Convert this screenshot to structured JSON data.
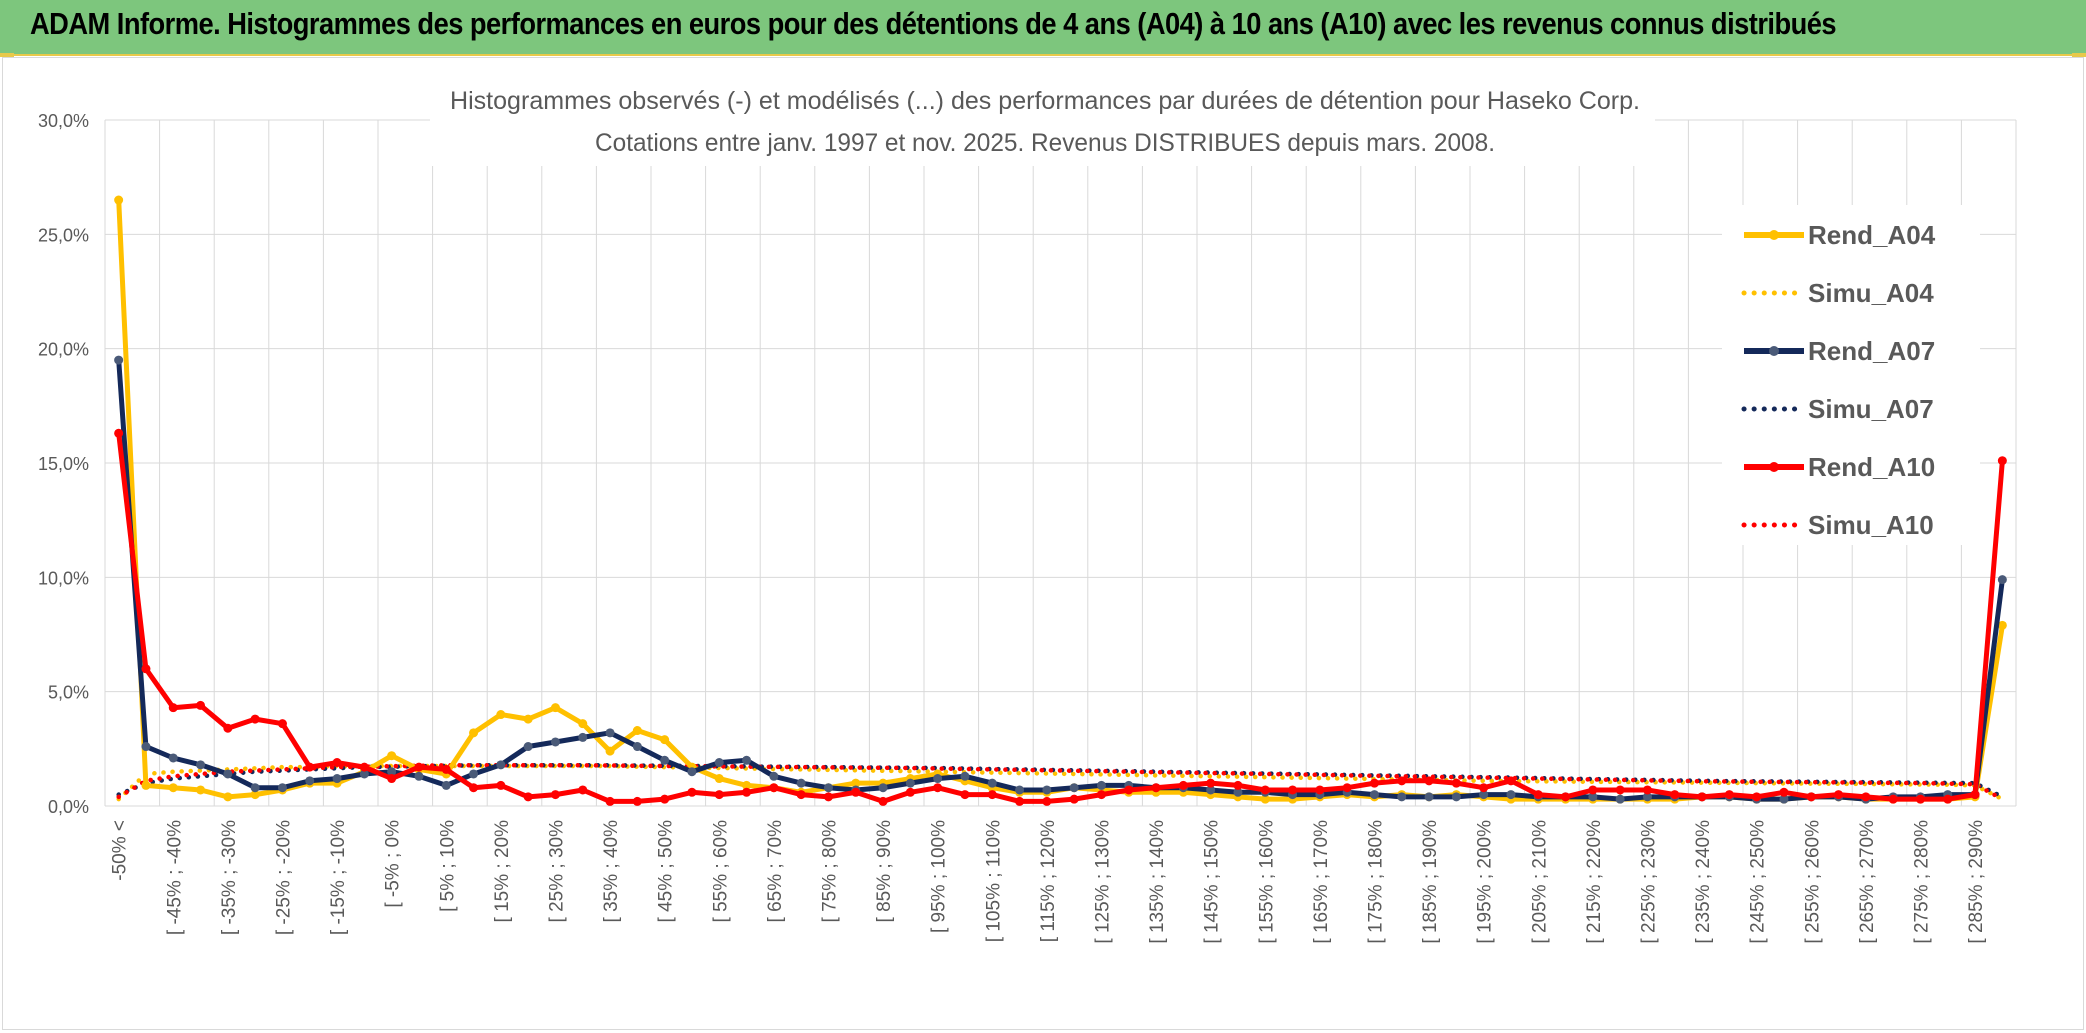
{
  "banner": {
    "title": "ADAM Informe. Histogrammes des performances en euros pour des détentions de 4 ans (A04) à 10 ans (A10) avec les revenus connus distribués"
  },
  "colors": {
    "banner_bg": "#7dc67d",
    "A04": "#ffc000",
    "A07": "#14295a",
    "A10": "#ff0000",
    "grid": "#d9d9d9",
    "text": "#595959"
  },
  "chart_data": {
    "type": "line",
    "title_line1": "Histogrammes observés (-) et modélisés (...) des performances par durées de détention pour Haseko Corp.",
    "title_line2": "Cotations entre janv. 1997 et nov. 2025. Revenus DISTRIBUES depuis mars. 2008.",
    "ylim": [
      0,
      30
    ],
    "yticks": [
      0,
      5,
      10,
      15,
      20,
      25,
      30
    ],
    "ytick_labels": [
      "0,0%",
      "5,0%",
      "10,0%",
      "15,0%",
      "20,0%",
      "25,0%",
      "30,0%"
    ],
    "legend_position": "right",
    "x_tick_labels": [
      "-50% <",
      "[ -45% ; -40%",
      "[ -35% ; -30%",
      "[ -25% ; -20%",
      "[ -15% ; -10%",
      "[ -5% ; 0%",
      "[ 5% ; 10%",
      "[ 15% ; 20%",
      "[ 25% ; 30%",
      "[ 35% ; 40%",
      "[ 45% ; 50%",
      "[ 55% ; 60%",
      "[ 65% ; 70%",
      "[ 75% ; 80%",
      "[ 85% ; 90%",
      "[ 95% ; 100%",
      "[ 105% ; 110%",
      "[ 115% ; 120%",
      "[ 125% ; 130%",
      "[ 135% ; 140%",
      "[ 145% ; 150%",
      "[ 155% ; 160%",
      "[ 165% ; 170%",
      "[ 175% ; 180%",
      "[ 185% ; 190%",
      "[ 195% ; 200%",
      "[ 205% ; 210%",
      "[ 215% ; 220%",
      "[ 225% ; 230%",
      "[ 235% ; 240%",
      "[ 245% ; 250%",
      "[ 255% ; 260%",
      "[ 265% ; 270%",
      "[ 275% ; 280%",
      "[ 285% ; 290%"
    ],
    "n_categories": 70,
    "series": [
      {
        "name": "Rend_A04",
        "key": "A04",
        "style": "solid",
        "values": [
          26.5,
          0.9,
          0.8,
          0.7,
          0.4,
          0.5,
          0.7,
          1.0,
          1.0,
          1.5,
          2.2,
          1.6,
          1.4,
          3.2,
          4.0,
          3.8,
          4.3,
          3.6,
          2.4,
          3.3,
          2.9,
          1.7,
          1.2,
          0.9,
          0.8,
          0.6,
          0.8,
          1.0,
          1.0,
          1.2,
          1.4,
          1.1,
          0.8,
          0.6,
          0.6,
          0.8,
          0.7,
          0.6,
          0.6,
          0.6,
          0.5,
          0.4,
          0.3,
          0.3,
          0.4,
          0.5,
          0.4,
          0.5,
          0.4,
          0.5,
          0.4,
          0.3,
          0.3,
          0.3,
          0.3,
          0.3,
          0.3,
          0.3,
          0.4,
          0.4,
          0.3,
          0.3,
          0.4,
          0.4,
          0.3,
          0.3,
          0.3,
          0.3,
          0.4,
          7.9
        ]
      },
      {
        "name": "Simu_A04",
        "key": "A04",
        "style": "dotted",
        "values": [
          0.3,
          1.4,
          1.5,
          1.55,
          1.6,
          1.65,
          1.7,
          1.7,
          1.75,
          1.75,
          1.75,
          1.75,
          1.75,
          1.75,
          1.75,
          1.75,
          1.75,
          1.75,
          1.75,
          1.72,
          1.7,
          1.68,
          1.66,
          1.64,
          1.62,
          1.6,
          1.58,
          1.56,
          1.54,
          1.52,
          1.5,
          1.48,
          1.46,
          1.44,
          1.42,
          1.4,
          1.38,
          1.36,
          1.34,
          1.32,
          1.3,
          1.28,
          1.26,
          1.24,
          1.22,
          1.2,
          1.18,
          1.16,
          1.14,
          1.12,
          1.1,
          1.09,
          1.08,
          1.07,
          1.06,
          1.05,
          1.04,
          1.03,
          1.02,
          1.01,
          1.0,
          0.99,
          0.98,
          0.97,
          0.96,
          0.95,
          0.94,
          0.93,
          0.9,
          0.3
        ]
      },
      {
        "name": "Rend_A07",
        "key": "A07",
        "style": "solid",
        "values": [
          19.5,
          2.6,
          2.1,
          1.8,
          1.4,
          0.8,
          0.8,
          1.1,
          1.2,
          1.4,
          1.5,
          1.3,
          0.9,
          1.4,
          1.8,
          2.6,
          2.8,
          3.0,
          3.2,
          2.6,
          2.0,
          1.5,
          1.9,
          2.0,
          1.3,
          1.0,
          0.8,
          0.7,
          0.8,
          1.0,
          1.2,
          1.3,
          1.0,
          0.7,
          0.7,
          0.8,
          0.9,
          0.9,
          0.8,
          0.8,
          0.7,
          0.6,
          0.6,
          0.5,
          0.5,
          0.6,
          0.5,
          0.4,
          0.4,
          0.4,
          0.5,
          0.5,
          0.4,
          0.4,
          0.4,
          0.3,
          0.4,
          0.4,
          0.4,
          0.4,
          0.3,
          0.3,
          0.4,
          0.4,
          0.3,
          0.4,
          0.4,
          0.5,
          0.5,
          9.9
        ]
      },
      {
        "name": "Simu_A07",
        "key": "A07",
        "style": "dotted",
        "values": [
          0.5,
          1.0,
          1.2,
          1.3,
          1.4,
          1.5,
          1.55,
          1.6,
          1.65,
          1.7,
          1.72,
          1.74,
          1.76,
          1.78,
          1.78,
          1.78,
          1.78,
          1.78,
          1.78,
          1.77,
          1.76,
          1.75,
          1.74,
          1.73,
          1.72,
          1.71,
          1.7,
          1.69,
          1.68,
          1.67,
          1.66,
          1.64,
          1.62,
          1.6,
          1.58,
          1.56,
          1.54,
          1.52,
          1.5,
          1.48,
          1.46,
          1.44,
          1.42,
          1.4,
          1.38,
          1.36,
          1.34,
          1.32,
          1.3,
          1.28,
          1.26,
          1.24,
          1.22,
          1.2,
          1.18,
          1.16,
          1.14,
          1.12,
          1.1,
          1.09,
          1.08,
          1.07,
          1.06,
          1.05,
          1.04,
          1.03,
          1.02,
          1.01,
          1.0,
          0.4
        ]
      },
      {
        "name": "Rend_A10",
        "key": "A10",
        "style": "solid",
        "values": [
          16.3,
          6.0,
          4.3,
          4.4,
          3.4,
          3.8,
          3.6,
          1.7,
          1.9,
          1.7,
          1.2,
          1.7,
          1.6,
          0.8,
          0.9,
          0.4,
          0.5,
          0.7,
          0.2,
          0.2,
          0.3,
          0.6,
          0.5,
          0.6,
          0.8,
          0.5,
          0.4,
          0.6,
          0.2,
          0.6,
          0.8,
          0.5,
          0.5,
          0.2,
          0.2,
          0.3,
          0.5,
          0.7,
          0.8,
          0.9,
          1.0,
          0.9,
          0.7,
          0.7,
          0.7,
          0.8,
          1.0,
          1.1,
          1.1,
          1.0,
          0.8,
          1.1,
          0.5,
          0.4,
          0.7,
          0.7,
          0.7,
          0.5,
          0.4,
          0.5,
          0.4,
          0.6,
          0.4,
          0.5,
          0.4,
          0.3,
          0.3,
          0.3,
          0.5,
          15.1
        ]
      },
      {
        "name": "Simu_A10",
        "key": "A10",
        "style": "dotted",
        "values": [
          0.4,
          1.1,
          1.3,
          1.4,
          1.5,
          1.55,
          1.6,
          1.65,
          1.7,
          1.72,
          1.74,
          1.76,
          1.78,
          1.78,
          1.78,
          1.78,
          1.78,
          1.78,
          1.77,
          1.76,
          1.75,
          1.74,
          1.73,
          1.72,
          1.71,
          1.7,
          1.69,
          1.68,
          1.67,
          1.66,
          1.64,
          1.62,
          1.6,
          1.58,
          1.56,
          1.54,
          1.52,
          1.5,
          1.48,
          1.46,
          1.44,
          1.42,
          1.4,
          1.38,
          1.36,
          1.34,
          1.32,
          1.3,
          1.28,
          1.26,
          1.24,
          1.22,
          1.2,
          1.18,
          1.16,
          1.14,
          1.12,
          1.1,
          1.08,
          1.07,
          1.06,
          1.05,
          1.04,
          1.03,
          1.02,
          1.01,
          1.0,
          0.98,
          0.95,
          0.3
        ]
      }
    ]
  }
}
